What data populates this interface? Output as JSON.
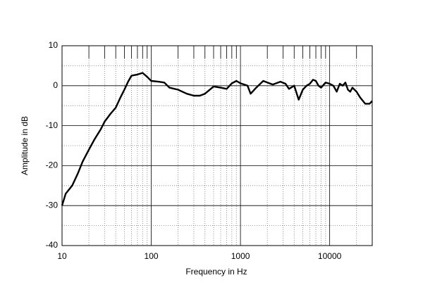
{
  "chart_data": {
    "type": "line",
    "xlabel": "Frequency in Hz",
    "ylabel": "Amplitude in dB",
    "xscale": "log",
    "xlim": [
      10,
      30000
    ],
    "ylim": [
      -40,
      10
    ],
    "xticks": [
      10,
      100,
      1000,
      10000
    ],
    "xminorticks": [
      20,
      30,
      40,
      50,
      60,
      70,
      80,
      90,
      200,
      300,
      400,
      500,
      600,
      700,
      800,
      900,
      2000,
      3000,
      4000,
      5000,
      6000,
      7000,
      8000,
      9000,
      20000
    ],
    "yticks": [
      10,
      0,
      -10,
      -20,
      -30,
      -40
    ],
    "yminorticks": [
      5,
      -5,
      -15,
      -25,
      -35
    ],
    "grid": true,
    "x": [
      10,
      11,
      13,
      15,
      17,
      20,
      23,
      27,
      30,
      35,
      40,
      45,
      50,
      55,
      60,
      70,
      80,
      90,
      100,
      120,
      140,
      160,
      200,
      250,
      300,
      350,
      400,
      500,
      600,
      700,
      800,
      900,
      1000,
      1200,
      1300,
      1500,
      1800,
      2000,
      2300,
      2800,
      3200,
      3500,
      4000,
      4500,
      5000,
      5500,
      6000,
      6500,
      7000,
      7500,
      8000,
      9000,
      10000,
      11000,
      12000,
      13000,
      14000,
      15000,
      16000,
      17000,
      18000,
      20000,
      22000,
      25000,
      28000,
      30000
    ],
    "series": [
      {
        "color": "#000000",
        "values": [
          -30,
          -27,
          -25,
          -22,
          -19,
          -16,
          -13.5,
          -11,
          -9,
          -7,
          -5.5,
          -3,
          -1,
          1,
          2.5,
          2.8,
          3.2,
          2.2,
          1.2,
          1,
          0.8,
          -0.5,
          -1,
          -2,
          -2.5,
          -2.5,
          -2,
          -0.2,
          -0.5,
          -0.8,
          0.6,
          1.2,
          0.6,
          0,
          -2,
          -0.5,
          1.2,
          0.8,
          0.3,
          1,
          0.5,
          -0.8,
          0,
          -3.5,
          -1,
          0,
          0.5,
          1.5,
          1.2,
          0,
          -0.5,
          0.8,
          0.5,
          0,
          -1.5,
          0.5,
          0,
          0.8,
          -1,
          -1.5,
          -0.5,
          -1.5,
          -3,
          -4.5,
          -4.5,
          -3.8
        ]
      }
    ]
  }
}
